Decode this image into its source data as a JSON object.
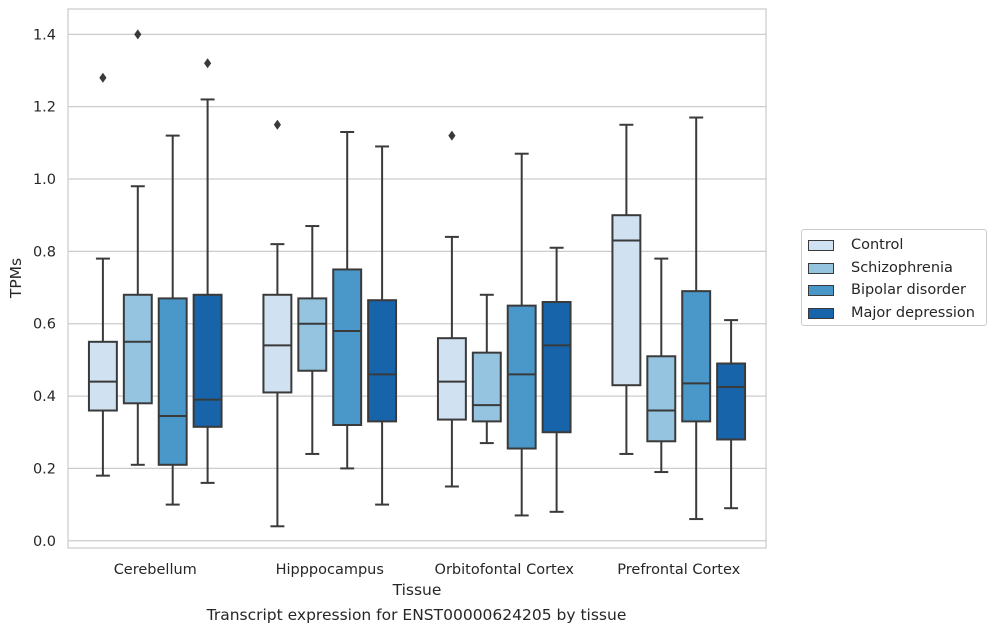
{
  "caption": "Transcript expression for ENST00000624205 by tissue",
  "chart_data": {
    "type": "boxplot",
    "xlabel": "Tissue",
    "ylabel": "TPMs",
    "ylim": [
      -0.02,
      1.47
    ],
    "yticks": [
      0.0,
      0.2,
      0.4,
      0.6,
      0.8,
      1.0,
      1.2,
      1.4
    ],
    "ytick_labels": [
      "0.0",
      "0.2",
      "0.4",
      "0.6",
      "0.8",
      "1.0",
      "1.2",
      "1.4"
    ],
    "grid": "horizontal",
    "legend_position": "right",
    "categories": [
      "Cerebellum",
      "Hipppocampus",
      "Orbitofontal Cortex",
      "Prefrontal Cortex"
    ],
    "series": [
      {
        "name": "Control",
        "color": "#d0e1f2",
        "boxes": [
          {
            "whislo": 0.18,
            "q1": 0.36,
            "med": 0.44,
            "q3": 0.55,
            "whishi": 0.78,
            "fliers": [
              1.28
            ]
          },
          {
            "whislo": 0.04,
            "q1": 0.41,
            "med": 0.54,
            "q3": 0.68,
            "whishi": 0.82,
            "fliers": [
              1.15
            ]
          },
          {
            "whislo": 0.15,
            "q1": 0.335,
            "med": 0.44,
            "q3": 0.56,
            "whishi": 0.84,
            "fliers": [
              1.12
            ]
          },
          {
            "whislo": 0.24,
            "q1": 0.43,
            "med": 0.83,
            "q3": 0.9,
            "whishi": 1.15,
            "fliers": []
          }
        ]
      },
      {
        "name": "Schizophrenia",
        "color": "#94c4df",
        "boxes": [
          {
            "whislo": 0.21,
            "q1": 0.38,
            "med": 0.55,
            "q3": 0.68,
            "whishi": 0.98,
            "fliers": [
              1.4
            ]
          },
          {
            "whislo": 0.24,
            "q1": 0.47,
            "med": 0.6,
            "q3": 0.67,
            "whishi": 0.87,
            "fliers": []
          },
          {
            "whislo": 0.27,
            "q1": 0.33,
            "med": 0.375,
            "q3": 0.52,
            "whishi": 0.68,
            "fliers": []
          },
          {
            "whislo": 0.19,
            "q1": 0.275,
            "med": 0.36,
            "q3": 0.51,
            "whishi": 0.78,
            "fliers": []
          }
        ]
      },
      {
        "name": "Bipolar disorder",
        "color": "#4a98c9",
        "boxes": [
          {
            "whislo": 0.1,
            "q1": 0.21,
            "med": 0.345,
            "q3": 0.67,
            "whishi": 1.12,
            "fliers": []
          },
          {
            "whislo": 0.2,
            "q1": 0.32,
            "med": 0.58,
            "q3": 0.75,
            "whishi": 1.13,
            "fliers": []
          },
          {
            "whislo": 0.07,
            "q1": 0.255,
            "med": 0.46,
            "q3": 0.65,
            "whishi": 1.07,
            "fliers": []
          },
          {
            "whislo": 0.06,
            "q1": 0.33,
            "med": 0.435,
            "q3": 0.69,
            "whishi": 1.17,
            "fliers": []
          }
        ]
      },
      {
        "name": "Major depression",
        "color": "#1764ab",
        "boxes": [
          {
            "whislo": 0.16,
            "q1": 0.315,
            "med": 0.39,
            "q3": 0.68,
            "whishi": 1.22,
            "fliers": [
              1.32
            ]
          },
          {
            "whislo": 0.1,
            "q1": 0.33,
            "med": 0.46,
            "q3": 0.665,
            "whishi": 1.09,
            "fliers": []
          },
          {
            "whislo": 0.08,
            "q1": 0.3,
            "med": 0.54,
            "q3": 0.66,
            "whishi": 0.81,
            "fliers": []
          },
          {
            "whislo": 0.09,
            "q1": 0.28,
            "med": 0.425,
            "q3": 0.49,
            "whishi": 0.61,
            "fliers": []
          }
        ]
      }
    ]
  }
}
